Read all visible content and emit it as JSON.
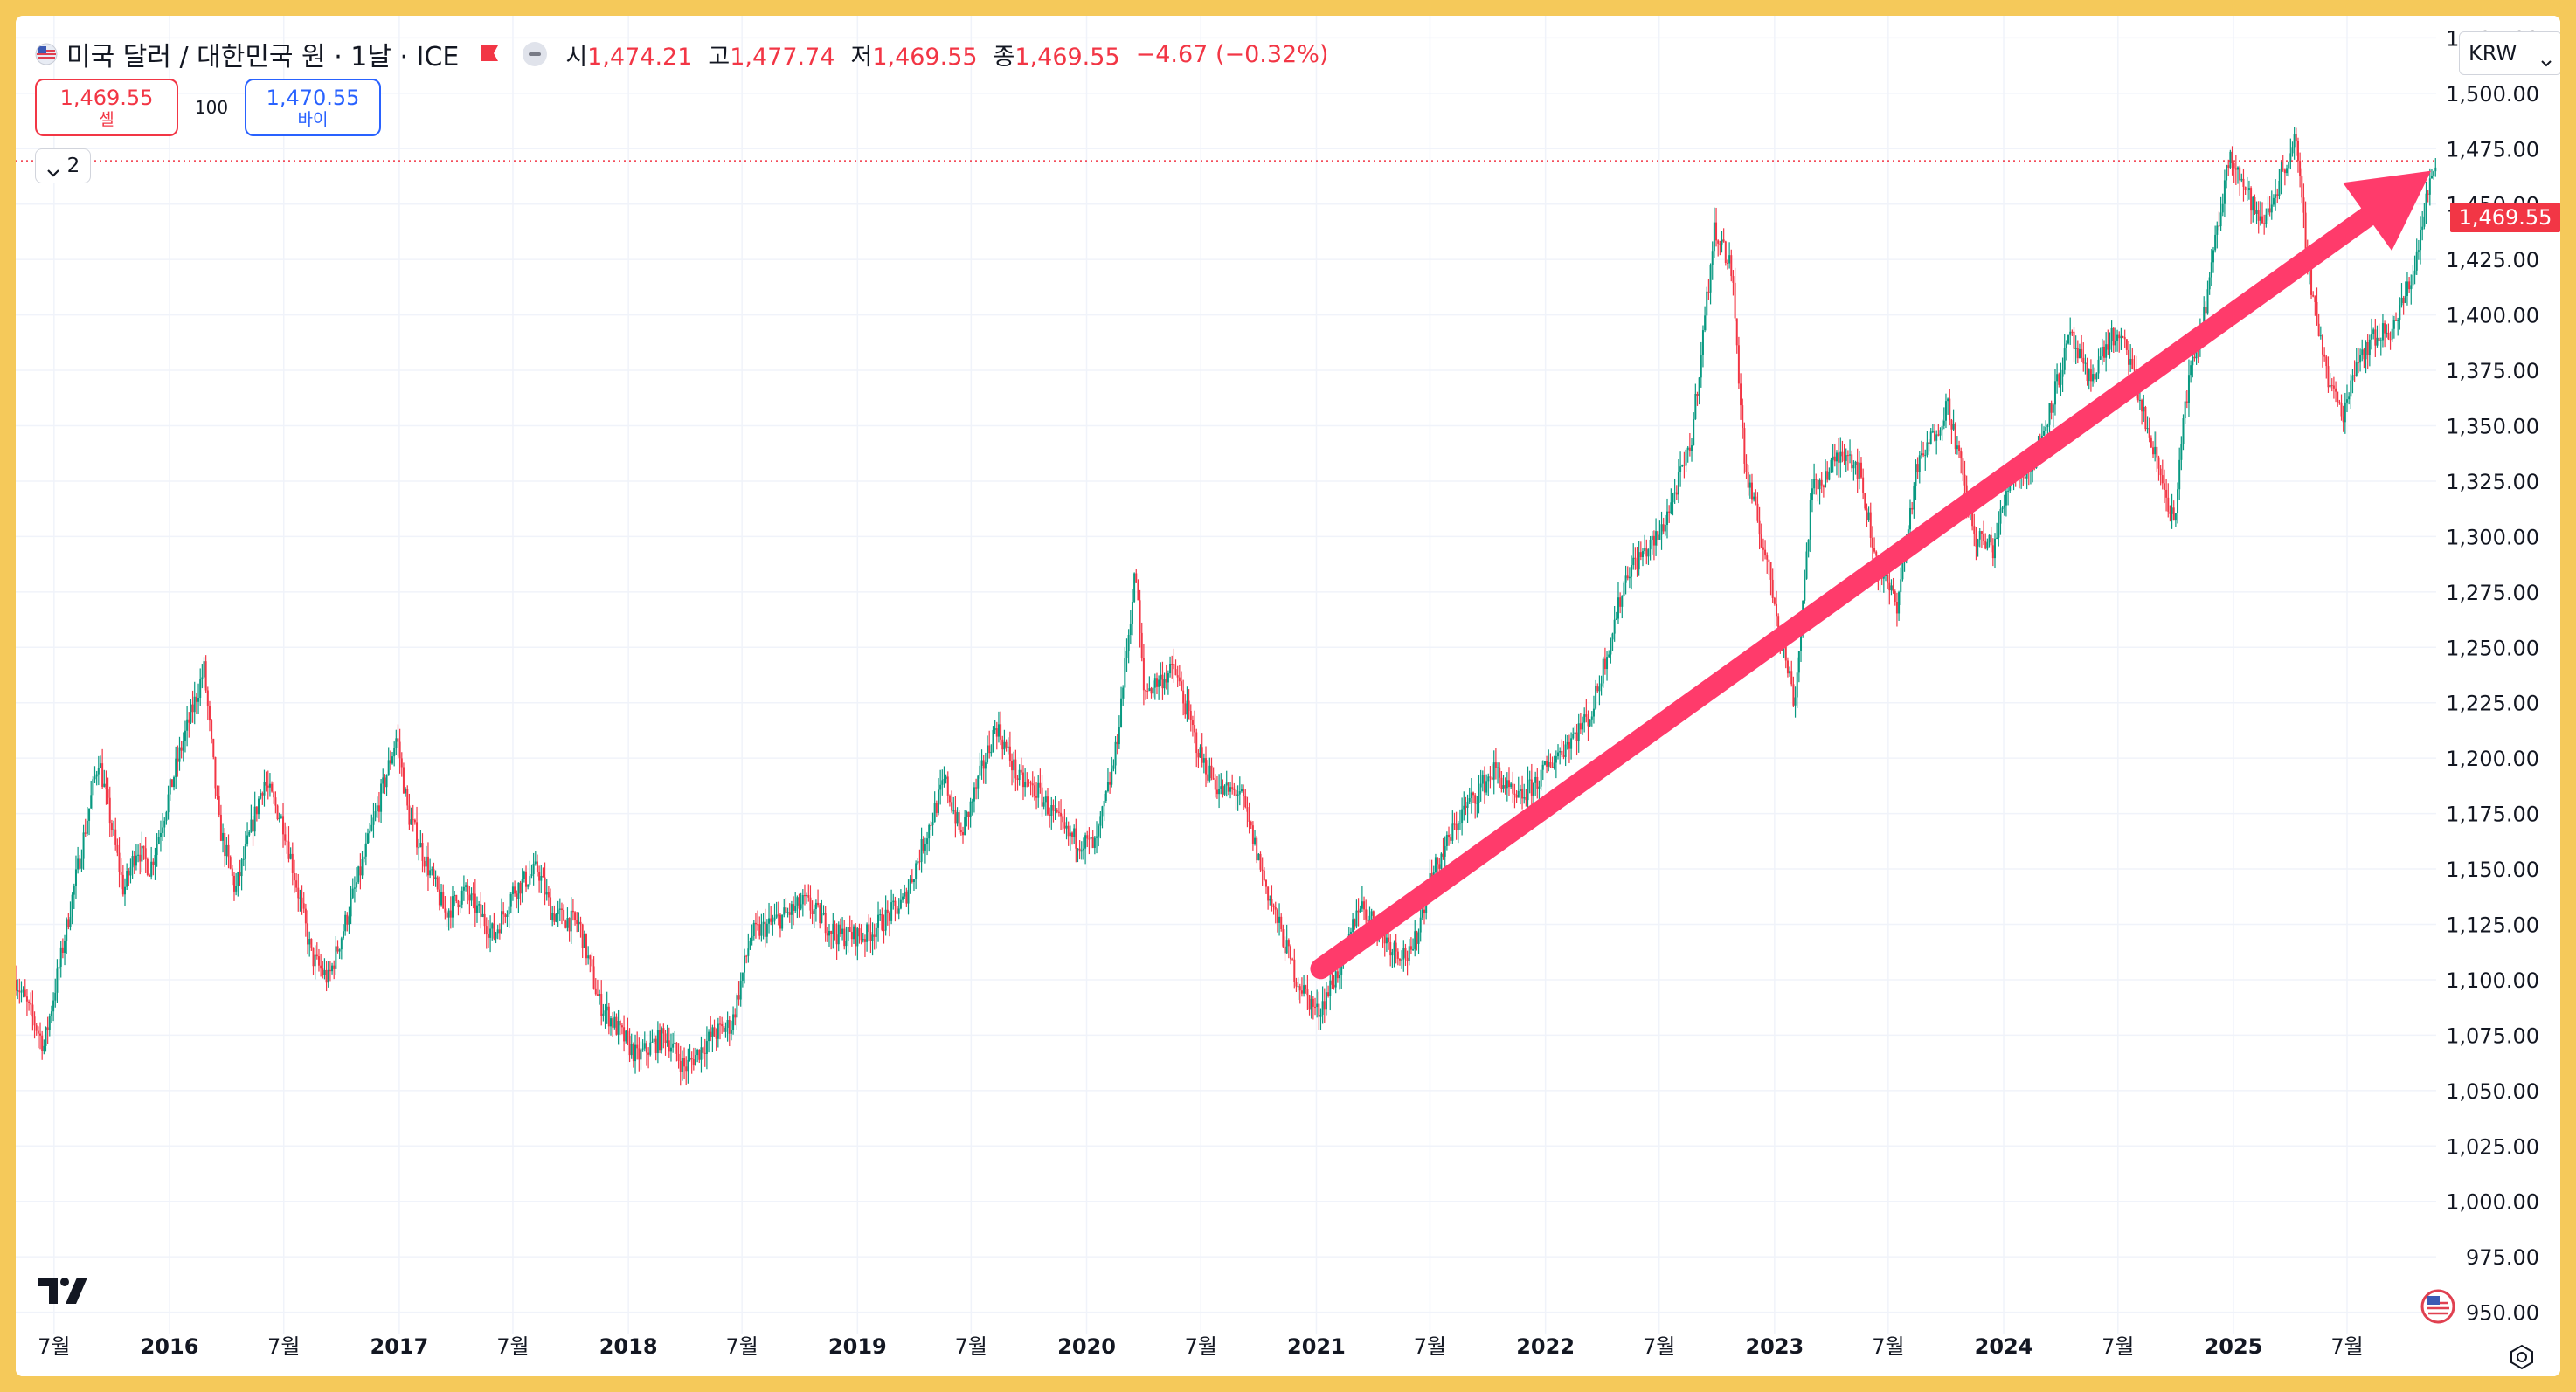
{
  "header": {
    "symbol_title": "미국 달러 / 대한민국 원 · 1날 · ICE",
    "open_label": "시",
    "open_value": "1,474.21",
    "high_label": "고",
    "high_value": "1,477.74",
    "low_label": "저",
    "low_value": "1,469.55",
    "close_label": "종",
    "close_value": "1,469.55",
    "change": "−4.67 (−0.32%)"
  },
  "trade": {
    "sell_price": "1,469.55",
    "sell_label": "셀",
    "spread": "100",
    "buy_price": "1,470.55",
    "buy_label": "바이"
  },
  "indicators_toggle": {
    "count": "2"
  },
  "currency": "KRW",
  "last_price_tag": "1,469.55",
  "logo": "TradingView",
  "colors": {
    "up": "#089981",
    "down": "#f23645",
    "arrow": "#ff3b6b",
    "last_price": "#f23645",
    "grid": "#f0f3fa",
    "background": "#ffffff"
  },
  "chart_data": {
    "type": "candlestick",
    "interval": "1 day",
    "y_axis_side": "right",
    "ylim": [
      940,
      1535
    ],
    "y_ticks": [
      950,
      975,
      1000,
      1025,
      1050,
      1075,
      1100,
      1125,
      1150,
      1175,
      1200,
      1225,
      1250,
      1275,
      1300,
      1325,
      1350,
      1375,
      1400,
      1425,
      1450,
      1475,
      1500,
      1525
    ],
    "y_tick_labels": [
      "950.00",
      "975.00",
      "1,000.00",
      "1,025.00",
      "1,050.00",
      "1,075.00",
      "1,100.00",
      "1,125.00",
      "1,150.00",
      "1,175.00",
      "1,200.00",
      "1,225.00",
      "1,250.00",
      "1,275.00",
      "1,300.00",
      "1,325.00",
      "1,350.00",
      "1,375.00",
      "1,400.00",
      "1,425.00",
      "1,450.00",
      "1,475.00",
      "1,500.00",
      "1,525.00"
    ],
    "xlim": [
      "2015-05-01",
      "2025-11-20"
    ],
    "x_ticks": [
      {
        "date": "2015-07-01",
        "label": "7월",
        "major": false
      },
      {
        "date": "2016-01-01",
        "label": "2016",
        "major": true
      },
      {
        "date": "2016-07-01",
        "label": "7월",
        "major": false
      },
      {
        "date": "2017-01-01",
        "label": "2017",
        "major": true
      },
      {
        "date": "2017-07-01",
        "label": "7월",
        "major": false
      },
      {
        "date": "2018-01-01",
        "label": "2018",
        "major": true
      },
      {
        "date": "2018-07-01",
        "label": "7월",
        "major": false
      },
      {
        "date": "2019-01-01",
        "label": "2019",
        "major": true
      },
      {
        "date": "2019-07-01",
        "label": "7월",
        "major": false
      },
      {
        "date": "2020-01-01",
        "label": "2020",
        "major": true
      },
      {
        "date": "2020-07-01",
        "label": "7월",
        "major": false
      },
      {
        "date": "2021-01-01",
        "label": "2021",
        "major": true
      },
      {
        "date": "2021-07-01",
        "label": "7월",
        "major": false
      },
      {
        "date": "2022-01-01",
        "label": "2022",
        "major": true
      },
      {
        "date": "2022-07-01",
        "label": "7월",
        "major": false
      },
      {
        "date": "2023-01-01",
        "label": "2023",
        "major": true
      },
      {
        "date": "2023-07-01",
        "label": "7월",
        "major": false
      },
      {
        "date": "2024-01-01",
        "label": "2024",
        "major": true
      },
      {
        "date": "2024-07-01",
        "label": "7월",
        "major": false
      },
      {
        "date": "2025-01-01",
        "label": "2025",
        "major": true
      },
      {
        "date": "2025-07-01",
        "label": "7월",
        "major": false
      }
    ],
    "last_price": 1469.55,
    "price_path": [
      [
        "2015-05-01",
        1100
      ],
      [
        "2015-06-01",
        1080
      ],
      [
        "2015-06-15",
        1070
      ],
      [
        "2015-08-01",
        1140
      ],
      [
        "2015-09-10",
        1200
      ],
      [
        "2015-10-20",
        1140
      ],
      [
        "2015-11-10",
        1160
      ],
      [
        "2015-12-01",
        1150
      ],
      [
        "2016-01-15",
        1200
      ],
      [
        "2016-02-25",
        1240
      ],
      [
        "2016-03-20",
        1170
      ],
      [
        "2016-04-15",
        1140
      ],
      [
        "2016-05-30",
        1190
      ],
      [
        "2016-07-01",
        1170
      ],
      [
        "2016-08-15",
        1110
      ],
      [
        "2016-09-10",
        1100
      ],
      [
        "2016-10-01",
        1120
      ],
      [
        "2016-11-01",
        1150
      ],
      [
        "2016-12-28",
        1210
      ],
      [
        "2017-01-15",
        1175
      ],
      [
        "2017-03-15",
        1130
      ],
      [
        "2017-04-15",
        1140
      ],
      [
        "2017-06-01",
        1120
      ],
      [
        "2017-07-01",
        1140
      ],
      [
        "2017-08-10",
        1150
      ],
      [
        "2017-09-01",
        1130
      ],
      [
        "2017-10-15",
        1125
      ],
      [
        "2017-11-15",
        1090
      ],
      [
        "2018-01-15",
        1065
      ],
      [
        "2018-03-01",
        1075
      ],
      [
        "2018-04-01",
        1060
      ],
      [
        "2018-05-15",
        1075
      ],
      [
        "2018-06-15",
        1080
      ],
      [
        "2018-07-15",
        1120
      ],
      [
        "2018-08-15",
        1125
      ],
      [
        "2018-10-10",
        1135
      ],
      [
        "2018-12-01",
        1120
      ],
      [
        "2019-01-15",
        1120
      ],
      [
        "2019-03-15",
        1135
      ],
      [
        "2019-05-20",
        1190
      ],
      [
        "2019-06-15",
        1165
      ],
      [
        "2019-08-10",
        1215
      ],
      [
        "2019-09-15",
        1190
      ],
      [
        "2019-10-15",
        1185
      ],
      [
        "2019-12-01",
        1165
      ],
      [
        "2020-01-15",
        1160
      ],
      [
        "2020-02-15",
        1200
      ],
      [
        "2020-03-19",
        1285
      ],
      [
        "2020-04-01",
        1230
      ],
      [
        "2020-05-20",
        1240
      ],
      [
        "2020-07-01",
        1200
      ],
      [
        "2020-08-01",
        1185
      ],
      [
        "2020-09-01",
        1185
      ],
      [
        "2020-10-15",
        1140
      ],
      [
        "2020-12-01",
        1100
      ],
      [
        "2021-01-03",
        1085
      ],
      [
        "2021-02-15",
        1110
      ],
      [
        "2021-03-10",
        1135
      ],
      [
        "2021-05-01",
        1115
      ],
      [
        "2021-06-01",
        1110
      ],
      [
        "2021-07-01",
        1145
      ],
      [
        "2021-08-20",
        1175
      ],
      [
        "2021-10-12",
        1195
      ],
      [
        "2021-11-15",
        1180
      ],
      [
        "2021-12-20",
        1190
      ],
      [
        "2022-01-15",
        1200
      ],
      [
        "2022-03-15",
        1220
      ],
      [
        "2022-05-12",
        1285
      ],
      [
        "2022-07-01",
        1300
      ],
      [
        "2022-08-20",
        1340
      ],
      [
        "2022-09-28",
        1440
      ],
      [
        "2022-10-25",
        1420
      ],
      [
        "2022-11-15",
        1330
      ],
      [
        "2022-12-15",
        1295
      ],
      [
        "2023-02-02",
        1225
      ],
      [
        "2023-03-01",
        1320
      ],
      [
        "2023-04-25",
        1340
      ],
      [
        "2023-05-15",
        1330
      ],
      [
        "2023-06-15",
        1285
      ],
      [
        "2023-07-15",
        1270
      ],
      [
        "2023-08-15",
        1330
      ],
      [
        "2023-10-05",
        1360
      ],
      [
        "2023-11-15",
        1300
      ],
      [
        "2023-12-15",
        1295
      ],
      [
        "2024-01-15",
        1330
      ],
      [
        "2024-02-15",
        1330
      ],
      [
        "2024-04-16",
        1390
      ],
      [
        "2024-05-15",
        1370
      ],
      [
        "2024-06-20",
        1390
      ],
      [
        "2024-07-15",
        1385
      ],
      [
        "2024-08-15",
        1350
      ],
      [
        "2024-09-30",
        1305
      ],
      [
        "2024-10-15",
        1360
      ],
      [
        "2024-11-15",
        1400
      ],
      [
        "2024-12-27",
        1475
      ],
      [
        "2025-01-15",
        1460
      ],
      [
        "2025-02-15",
        1440
      ],
      [
        "2025-03-15",
        1460
      ],
      [
        "2025-04-09",
        1480
      ],
      [
        "2025-05-01",
        1420
      ],
      [
        "2025-06-01",
        1370
      ],
      [
        "2025-06-25",
        1355
      ],
      [
        "2025-07-15",
        1380
      ],
      [
        "2025-08-15",
        1390
      ],
      [
        "2025-09-15",
        1395
      ],
      [
        "2025-10-15",
        1420
      ],
      [
        "2025-11-10",
        1460
      ],
      [
        "2025-11-20",
        1469.55
      ]
    ],
    "annotations": [
      {
        "type": "arrow",
        "from": [
          "2021-01-08",
          1105
        ],
        "to": [
          "2025-11-12",
          1465
        ],
        "color": "#ff3b6b"
      }
    ]
  }
}
